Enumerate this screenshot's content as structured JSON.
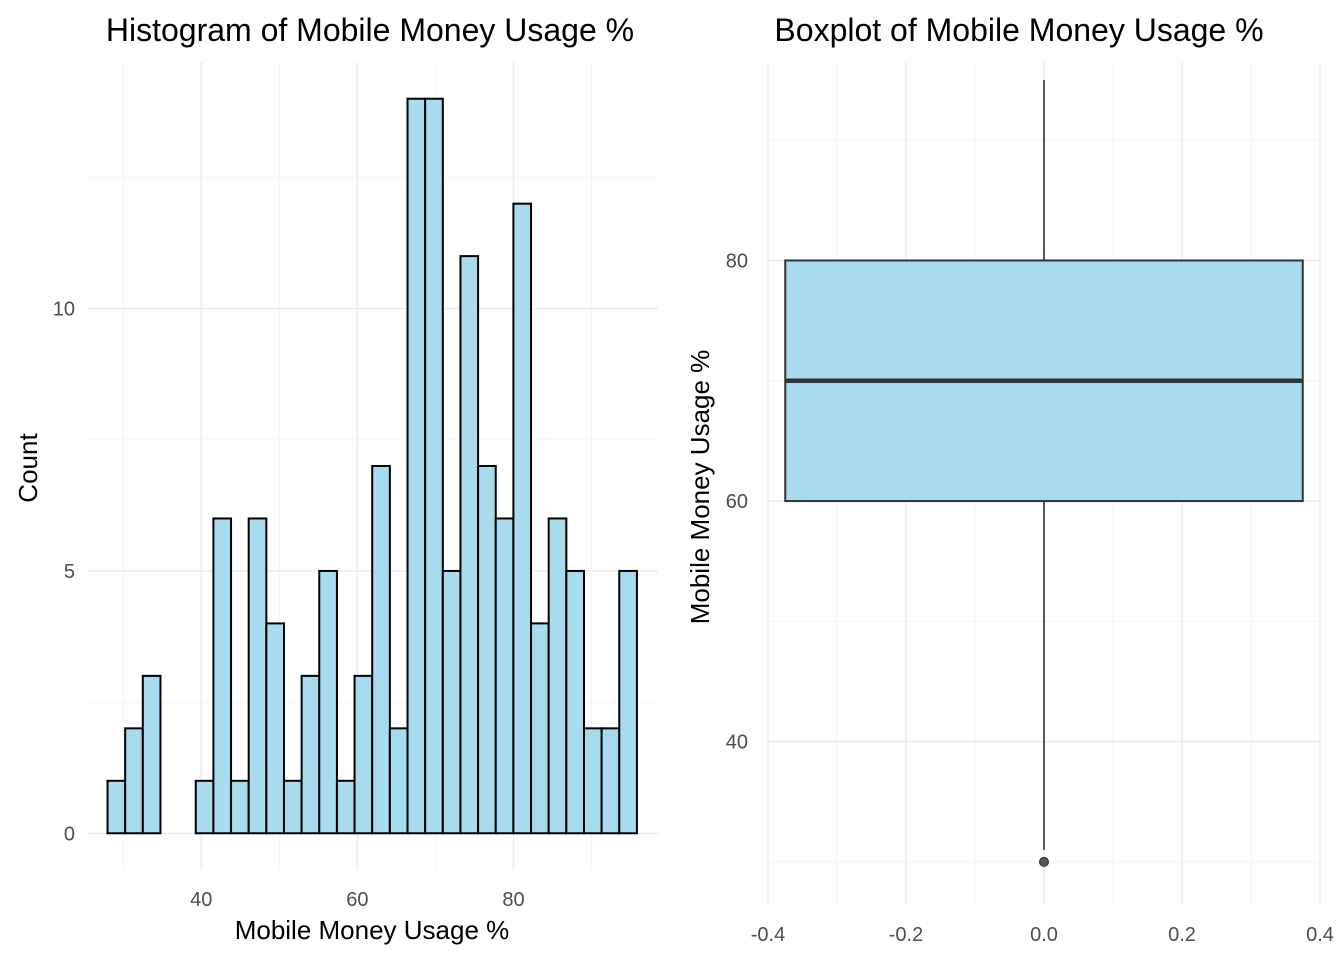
{
  "chart_data": [
    {
      "type": "bar",
      "subtype": "histogram",
      "title": "Histogram of Mobile Money Usage %",
      "xlabel": "Mobile Money Usage %",
      "ylabel": "Count",
      "xlim": [
        25.5,
        98.5
      ],
      "ylim": [
        -0.7,
        14.7
      ],
      "x_ticks": [
        40,
        60,
        80
      ],
      "y_ticks": [
        0,
        5,
        10
      ],
      "bin_width": 2.26,
      "bins": [
        {
          "start": 28.0,
          "count": 1
        },
        {
          "start": 30.26,
          "count": 2
        },
        {
          "start": 32.52,
          "count": 3
        },
        {
          "start": 34.78,
          "count": 0
        },
        {
          "start": 37.04,
          "count": 0
        },
        {
          "start": 39.3,
          "count": 1
        },
        {
          "start": 41.56,
          "count": 6
        },
        {
          "start": 43.82,
          "count": 1
        },
        {
          "start": 46.08,
          "count": 6
        },
        {
          "start": 48.34,
          "count": 4
        },
        {
          "start": 50.6,
          "count": 1
        },
        {
          "start": 52.86,
          "count": 3
        },
        {
          "start": 55.12,
          "count": 5
        },
        {
          "start": 57.38,
          "count": 1
        },
        {
          "start": 59.64,
          "count": 3
        },
        {
          "start": 61.9,
          "count": 7
        },
        {
          "start": 64.16,
          "count": 2
        },
        {
          "start": 66.42,
          "count": 14
        },
        {
          "start": 68.68,
          "count": 14
        },
        {
          "start": 70.94,
          "count": 5
        },
        {
          "start": 73.2,
          "count": 11
        },
        {
          "start": 75.46,
          "count": 7
        },
        {
          "start": 77.72,
          "count": 6
        },
        {
          "start": 79.98,
          "count": 12
        },
        {
          "start": 82.24,
          "count": 4
        },
        {
          "start": 84.5,
          "count": 6
        },
        {
          "start": 86.76,
          "count": 5
        },
        {
          "start": 89.02,
          "count": 2
        },
        {
          "start": 91.28,
          "count": 2
        },
        {
          "start": 93.54,
          "count": 5
        }
      ],
      "fill_color": "#a9dbef",
      "stroke_color": "#000000",
      "grid": true
    },
    {
      "type": "boxplot",
      "title": "Boxplot of Mobile Money Usage %",
      "xlabel": "",
      "ylabel": "Mobile Money Usage %",
      "xlim": [
        -0.4,
        0.4
      ],
      "ylim": [
        26.5,
        96.5
      ],
      "x_ticks": [
        -0.4,
        -0.2,
        0.0,
        0.2,
        0.4
      ],
      "x_tick_labels": [
        "-0.4",
        "-0.2",
        "0.0",
        "0.2",
        "0.4"
      ],
      "y_ticks": [
        40,
        60,
        80
      ],
      "box": {
        "x_center": 0.0,
        "half_width": 0.375,
        "q1": 60,
        "median": 70,
        "q3": 80,
        "whisker_low": 31,
        "whisker_high": 95
      },
      "outliers": [
        30
      ],
      "fill_color": "#a9dbef",
      "stroke_color": "#333333",
      "grid": true
    }
  ]
}
